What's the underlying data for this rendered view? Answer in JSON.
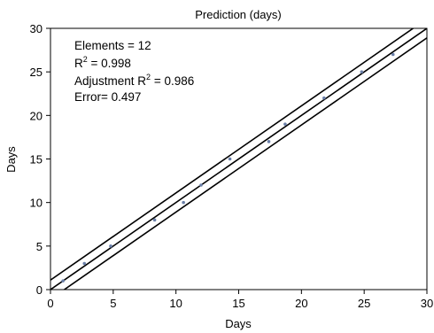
{
  "chart_data": {
    "type": "scatter",
    "title": "Prediction (days)",
    "xlabel": "Days",
    "ylabel": "Days",
    "xlim": [
      0,
      30
    ],
    "ylim": [
      0,
      30
    ],
    "xticks": [
      "0",
      "5",
      "10",
      "15",
      "20",
      "25",
      "30"
    ],
    "yticks": [
      "0",
      "5",
      "10",
      "15",
      "20",
      "25",
      "30"
    ],
    "grid": false,
    "points": [
      {
        "x": 1.0,
        "y": 1.0
      },
      {
        "x": 2.7,
        "y": 3.0
      },
      {
        "x": 4.8,
        "y": 5.0
      },
      {
        "x": 8.3,
        "y": 8.0
      },
      {
        "x": 10.6,
        "y": 10.0
      },
      {
        "x": 12.0,
        "y": 12.0
      },
      {
        "x": 14.3,
        "y": 15.0
      },
      {
        "x": 17.4,
        "y": 17.0
      },
      {
        "x": 18.7,
        "y": 19.0
      },
      {
        "x": 21.8,
        "y": 22.0
      },
      {
        "x": 24.8,
        "y": 25.0
      },
      {
        "x": 27.3,
        "y": 27.0
      }
    ],
    "lines": [
      {
        "intercept": 1.1,
        "slope": 1.0
      },
      {
        "intercept": 0.0,
        "slope": 1.0
      },
      {
        "intercept": -1.1,
        "slope": 1.0
      }
    ],
    "annotations": {
      "elements": "Elements = 12",
      "r2_prefix": "R",
      "r2_sup": "2",
      "r2_value": " = 0.998",
      "adj_prefix": "Adjustment R",
      "adj_sup": "2",
      "adj_value": " = 0.986",
      "error": "Error= 0.497"
    },
    "colors": {
      "points": "#6a7fa8",
      "lines": "#000000",
      "axis": "#000000"
    }
  }
}
